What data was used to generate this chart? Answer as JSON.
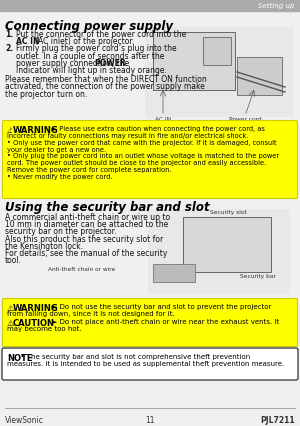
{
  "page_bg": "#f0f0f0",
  "header_bar_color": "#aaaaaa",
  "header_text": "Setting up",
  "header_text_color": "#ffffff",
  "title1": "Connecting power supply",
  "title2": "Using the security bar and slot",
  "warning_bg": "#ffff00",
  "note_bg": "#ffffff",
  "note_border": "#333333",
  "footer_left": "ViewSonic",
  "footer_center": "11",
  "footer_right": "PJL7211",
  "body_text_color": "#111111",
  "bold_color": "#000000",
  "figsize": [
    3.0,
    4.26
  ],
  "dpi": 100
}
